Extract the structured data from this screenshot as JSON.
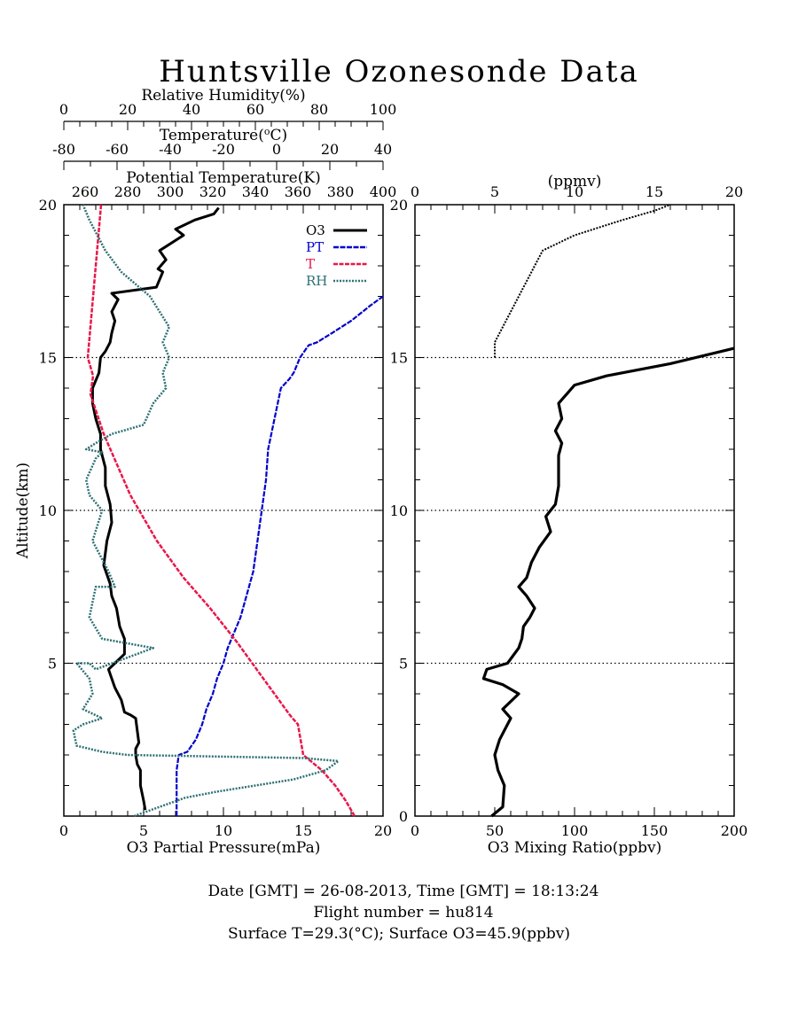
{
  "title": "Huntsville Ozonesonde Data",
  "footer": {
    "line1": "Date [GMT] = 26-08-2013,  Time [GMT] = 18:13:24",
    "line2": "Flight number = hu814",
    "line3": "Surface T=29.3(°C); Surface O3=45.9(ppbv)"
  },
  "colors": {
    "o3": "#000000",
    "pt": "#0000cc",
    "t": "#e8174a",
    "rh": "#2e7074"
  },
  "chart_data": [
    {
      "type": "line",
      "panel": "left",
      "ylabel": "Altitude(km)",
      "ylim": [
        0,
        20
      ],
      "yticks": [
        5,
        10,
        15,
        20
      ],
      "axes": {
        "o3": {
          "label": "O3 Partial Pressure(mPa)",
          "range": [
            0,
            20
          ],
          "ticks": [
            0,
            5,
            10,
            15,
            20
          ]
        },
        "rh": {
          "label": "Relative Humidity(%)",
          "range": [
            0,
            100
          ],
          "ticks": [
            0,
            20,
            40,
            60,
            80,
            100
          ]
        },
        "t": {
          "label": "Temperature(°C)",
          "range": [
            -80,
            40
          ],
          "ticks": [
            "-80",
            "-60",
            "-40",
            "-20",
            "0",
            "20",
            "40"
          ]
        },
        "pt": {
          "label": "Potential Temperature(K)",
          "range": [
            250,
            400
          ],
          "ticks": [
            "260",
            "280",
            "300",
            "320",
            "340",
            "360",
            "380",
            "400"
          ]
        }
      },
      "grid_altitudes": [
        5,
        10,
        15
      ],
      "legend": {
        "position": "top-right",
        "entries": [
          "O3",
          "PT",
          "T",
          "RH"
        ]
      },
      "series": [
        {
          "name": "O3",
          "key": "o3",
          "x": [
            5.1,
            5.0,
            4.8,
            4.8,
            4.6,
            4.5,
            4.5,
            4.7,
            4.6,
            4.5,
            4.2,
            3.8,
            3.6,
            3.2,
            3.0,
            2.8,
            3.2,
            3.8,
            3.8,
            3.5,
            3.3,
            3.0,
            2.9,
            2.5,
            2.7,
            3.0,
            2.9,
            2.6,
            2.6,
            2.3,
            2.3,
            2.0,
            1.8,
            1.8,
            2.2,
            2.3,
            2.6,
            2.9,
            3.0,
            3.2,
            3.0,
            3.4,
            3.0,
            5.8,
            6.2,
            5.9,
            6.4,
            6.0,
            7.5,
            7.0,
            8.2,
            9.4,
            9.7
          ],
          "y": [
            0.2,
            0.5,
            1.0,
            1.5,
            1.7,
            2.0,
            2.2,
            2.4,
            2.8,
            3.2,
            3.3,
            3.4,
            3.8,
            4.2,
            4.5,
            4.8,
            5.0,
            5.3,
            5.8,
            6.2,
            6.8,
            7.2,
            7.6,
            8.2,
            9.0,
            9.6,
            10.2,
            10.8,
            11.4,
            12.0,
            12.5,
            13.0,
            13.5,
            14.0,
            14.5,
            15.0,
            15.2,
            15.5,
            15.8,
            16.2,
            16.5,
            16.9,
            17.1,
            17.3,
            17.8,
            17.9,
            18.2,
            18.5,
            19.0,
            19.2,
            19.5,
            19.7,
            19.9
          ]
        },
        {
          "name": "PT",
          "key": "pt",
          "x": [
            303,
            303,
            303,
            303,
            304,
            308,
            312,
            315,
            317,
            320,
            322,
            325,
            327,
            330,
            333,
            335,
            337,
            339,
            341,
            343,
            345,
            346,
            349,
            352,
            356,
            358,
            361,
            365,
            369,
            376,
            385,
            394,
            400
          ],
          "y": [
            0.0,
            0.5,
            1.0,
            1.5,
            2.0,
            2.1,
            2.5,
            3.0,
            3.5,
            4.0,
            4.5,
            5.0,
            5.5,
            6.0,
            6.5,
            7.0,
            7.5,
            8.0,
            9.0,
            10.0,
            11.0,
            12.0,
            13.0,
            14.0,
            14.3,
            14.5,
            15.0,
            15.4,
            15.5,
            15.8,
            16.2,
            16.7,
            17.0
          ]
        },
        {
          "name": "T",
          "key": "t",
          "x": [
            29.3,
            26,
            22,
            17,
            10,
            9,
            8,
            5,
            -5,
            -15,
            -25,
            -35,
            -45,
            -55,
            -65,
            -70,
            -69,
            -71,
            -70,
            -69,
            -68,
            -67,
            -66
          ],
          "y": [
            0.0,
            0.5,
            1.0,
            1.5,
            2.0,
            2.5,
            3.0,
            3.3,
            4.5,
            5.7,
            6.8,
            7.8,
            9.0,
            10.5,
            12.5,
            13.8,
            14.4,
            15.0,
            16.0,
            17.0,
            18.0,
            19.0,
            20.0
          ]
        },
        {
          "name": "RH",
          "key": "rh",
          "x": [
            22,
            30,
            38,
            48,
            60,
            72,
            82,
            86,
            75,
            20,
            12,
            4,
            3,
            6,
            12,
            6,
            9,
            8,
            4,
            8,
            10,
            28,
            12,
            8,
            10,
            16,
            14,
            9,
            12,
            8,
            7,
            10,
            12,
            7,
            10,
            15,
            25,
            28,
            32,
            31,
            33,
            31,
            33,
            30,
            27,
            18,
            13,
            8,
            6
          ],
          "y": [
            0.0,
            0.3,
            0.6,
            0.8,
            1.0,
            1.2,
            1.5,
            1.8,
            1.9,
            2.0,
            2.1,
            2.3,
            2.8,
            3.0,
            3.2,
            3.5,
            4.0,
            4.5,
            5.0,
            5.0,
            4.8,
            5.5,
            5.8,
            6.5,
            7.5,
            7.5,
            8.0,
            9.0,
            10.0,
            10.5,
            11.0,
            11.7,
            11.9,
            12.0,
            12.2,
            12.5,
            12.8,
            13.5,
            14.0,
            14.5,
            15.0,
            15.5,
            16.0,
            16.5,
            17.0,
            17.8,
            18.5,
            19.5,
            20.0
          ]
        }
      ]
    },
    {
      "type": "line",
      "panel": "right",
      "xlabel": "O3 Mixing Ratio(ppbv)",
      "xlim": [
        0,
        200
      ],
      "xticks": [
        0,
        50,
        100,
        150,
        200
      ],
      "top_axis": {
        "label": "(ppmv)",
        "range": [
          0,
          20
        ],
        "ticks": [
          0,
          5,
          10,
          15,
          20
        ]
      },
      "ylim": [
        0,
        20
      ],
      "yticks": [
        0,
        5,
        10,
        15,
        20
      ],
      "grid_altitudes": [
        5,
        10,
        15
      ],
      "series": [
        {
          "key": "o3mr",
          "x": [
            48,
            55,
            56,
            52,
            50,
            53,
            56,
            60,
            55,
            65,
            55,
            43,
            45,
            58,
            65,
            67,
            68,
            72,
            75,
            70,
            65,
            70,
            73,
            78,
            85,
            82,
            88,
            90,
            90,
            90,
            92,
            88,
            92,
            90,
            95,
            100,
            120,
            160,
            200
          ],
          "y": [
            0.0,
            0.3,
            1.0,
            1.5,
            2.0,
            2.5,
            2.8,
            3.2,
            3.5,
            4.0,
            4.3,
            4.5,
            4.8,
            5.0,
            5.5,
            5.8,
            6.2,
            6.5,
            6.8,
            7.2,
            7.5,
            7.8,
            8.3,
            8.8,
            9.3,
            9.8,
            10.2,
            10.8,
            11.3,
            11.8,
            12.2,
            12.6,
            13.0,
            13.5,
            13.8,
            14.1,
            14.4,
            14.8,
            15.3
          ]
        },
        {
          "key": "o3mr_upper",
          "x": [
            5,
            5,
            6,
            7,
            8,
            10,
            13,
            15,
            16
          ],
          "y": [
            15.0,
            15.5,
            16.5,
            17.5,
            18.5,
            19.0,
            19.5,
            19.8,
            20.0
          ]
        }
      ]
    }
  ]
}
